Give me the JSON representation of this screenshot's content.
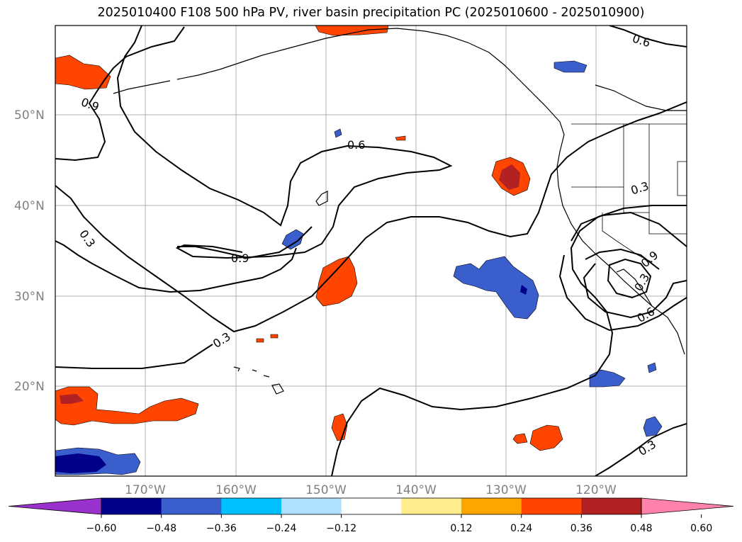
{
  "title": "2025010400 F108 500 hPa PV, river basin precipitation PC (2025010600 - 2025010900)",
  "lat_labels": [
    "50°N",
    "40°N",
    "30°N",
    "20°N"
  ],
  "lon_labels": [
    "170°W",
    "160°W",
    "150°W",
    "140°W",
    "130°W",
    "120°W"
  ],
  "contour_labels": [
    "0.9",
    "0.6",
    "0.3",
    "0.3",
    "0.9",
    "0.3",
    "0.6",
    "0.9",
    "0.6",
    "0.3",
    "0.3"
  ],
  "colorbar": {
    "ticks": [
      "−0.60",
      "−0.48",
      "−0.36",
      "−0.24",
      "−0.12",
      "0.12",
      "0.24",
      "0.36",
      "0.48",
      "0.60"
    ],
    "colors": [
      "#9932cc",
      "#00008b",
      "#3a5fcd",
      "#00bfff",
      "#b0e2ff",
      "#ffffff",
      "#ffec8b",
      "#ffa500",
      "#ff4500",
      "#b22222",
      "#ff82ab"
    ]
  },
  "colors": {
    "negative_dark": "#00008b",
    "negative_mid": "#3a5fcd",
    "negative_light": "#00bfff",
    "positive_mid": "#ff4500",
    "positive_dark": "#b22222",
    "positive_light": "#ffec8b"
  }
}
